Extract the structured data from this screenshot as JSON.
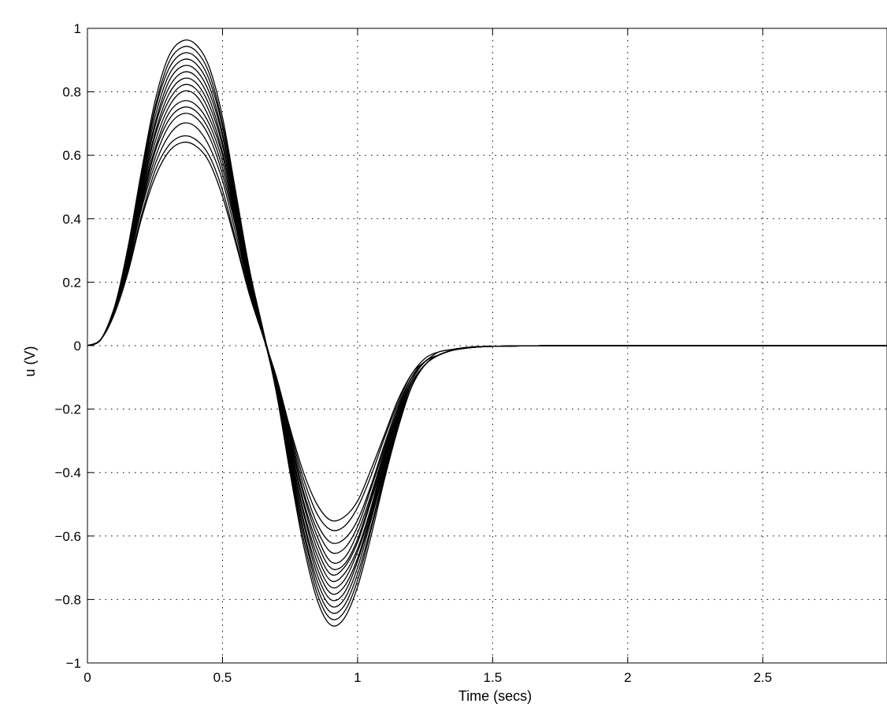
{
  "chart_data": {
    "type": "line",
    "title": "",
    "xlabel": "Time (secs)",
    "ylabel": "u (V)",
    "xlim": [
      0,
      2.96
    ],
    "ylim": [
      -1,
      1
    ],
    "grid": true,
    "legend": "none",
    "line_color": "#000000",
    "x_ticks": [
      {
        "value": 0,
        "label": "0"
      },
      {
        "value": 0.5,
        "label": "0.5"
      },
      {
        "value": 1,
        "label": "1"
      },
      {
        "value": 1.5,
        "label": "1.5"
      },
      {
        "value": 2,
        "label": "2"
      },
      {
        "value": 2.5,
        "label": "2.5"
      }
    ],
    "y_ticks": [
      {
        "value": 1,
        "label": "1"
      },
      {
        "value": 0.8,
        "label": "0.8"
      },
      {
        "value": 0.6,
        "label": "0.6"
      },
      {
        "value": 0.4,
        "label": "0.4"
      },
      {
        "value": 0.2,
        "label": "0.2"
      },
      {
        "value": 0,
        "label": "0"
      },
      {
        "value": -0.2,
        "label": "−0.2"
      },
      {
        "value": -0.4,
        "label": "−0.4"
      },
      {
        "value": -0.6,
        "label": "−0.6"
      },
      {
        "value": -0.8,
        "label": "−0.8"
      },
      {
        "value": -1,
        "label": "−1"
      }
    ],
    "x": [
      0,
      0.05,
      0.1,
      0.15,
      0.2,
      0.25,
      0.3,
      0.35,
      0.4,
      0.45,
      0.5,
      0.55,
      0.6,
      0.65,
      0.7,
      0.75,
      0.8,
      0.85,
      0.9,
      0.95,
      1.0,
      1.05,
      1.1,
      1.15,
      1.2,
      1.25,
      1.3,
      1.35,
      1.4,
      1.45,
      1.5,
      1.6,
      1.7,
      1.8,
      2.0,
      2.5,
      2.96
    ],
    "series": [
      {
        "values": [
          0,
          0.02,
          0.12,
          0.31,
          0.55,
          0.77,
          0.91,
          0.96,
          0.95,
          0.88,
          0.72,
          0.48,
          0.24,
          0.05,
          -0.15,
          -0.4,
          -0.63,
          -0.8,
          -0.88,
          -0.86,
          -0.76,
          -0.6,
          -0.42,
          -0.26,
          -0.13,
          -0.06,
          -0.03,
          -0.015,
          -0.008,
          -0.004,
          -0.002,
          -0.001,
          0,
          0,
          0,
          0,
          0
        ]
      },
      {
        "values": [
          0,
          0.02,
          0.12,
          0.3,
          0.54,
          0.75,
          0.89,
          0.94,
          0.93,
          0.86,
          0.7,
          0.47,
          0.23,
          0.05,
          -0.15,
          -0.39,
          -0.61,
          -0.78,
          -0.86,
          -0.84,
          -0.74,
          -0.58,
          -0.41,
          -0.25,
          -0.13,
          -0.06,
          -0.03,
          -0.015,
          -0.008,
          -0.004,
          -0.002,
          -0.001,
          0,
          0,
          0,
          0,
          0
        ]
      },
      {
        "values": [
          0,
          0.02,
          0.12,
          0.3,
          0.53,
          0.74,
          0.87,
          0.92,
          0.91,
          0.84,
          0.69,
          0.46,
          0.23,
          0.05,
          -0.14,
          -0.38,
          -0.59,
          -0.76,
          -0.84,
          -0.82,
          -0.72,
          -0.57,
          -0.4,
          -0.24,
          -0.12,
          -0.06,
          -0.03,
          -0.015,
          -0.008,
          -0.004,
          -0.002,
          -0.001,
          0,
          0,
          0,
          0,
          0
        ]
      },
      {
        "values": [
          0,
          0.02,
          0.12,
          0.29,
          0.52,
          0.72,
          0.85,
          0.9,
          0.89,
          0.82,
          0.67,
          0.45,
          0.22,
          0.04,
          -0.14,
          -0.37,
          -0.58,
          -0.74,
          -0.82,
          -0.8,
          -0.7,
          -0.55,
          -0.39,
          -0.24,
          -0.12,
          -0.06,
          -0.03,
          -0.015,
          -0.008,
          -0.004,
          -0.002,
          -0.001,
          0,
          0,
          0,
          0,
          0
        ]
      },
      {
        "values": [
          0,
          0.02,
          0.12,
          0.29,
          0.51,
          0.7,
          0.83,
          0.88,
          0.87,
          0.8,
          0.66,
          0.44,
          0.22,
          0.04,
          -0.14,
          -0.36,
          -0.56,
          -0.72,
          -0.8,
          -0.78,
          -0.68,
          -0.54,
          -0.38,
          -0.23,
          -0.12,
          -0.06,
          -0.03,
          -0.015,
          -0.008,
          -0.004,
          -0.002,
          -0.001,
          0,
          0,
          0,
          0,
          0
        ]
      },
      {
        "values": [
          0,
          0.02,
          0.12,
          0.28,
          0.5,
          0.69,
          0.81,
          0.86,
          0.85,
          0.78,
          0.64,
          0.43,
          0.21,
          0.04,
          -0.14,
          -0.35,
          -0.55,
          -0.7,
          -0.78,
          -0.76,
          -0.67,
          -0.53,
          -0.37,
          -0.23,
          -0.12,
          -0.06,
          -0.03,
          -0.015,
          -0.008,
          -0.004,
          -0.002,
          -0.001,
          0,
          0,
          0,
          0,
          0
        ]
      },
      {
        "values": [
          0,
          0.02,
          0.12,
          0.28,
          0.49,
          0.67,
          0.79,
          0.84,
          0.83,
          0.76,
          0.63,
          0.42,
          0.21,
          0.04,
          -0.13,
          -0.34,
          -0.53,
          -0.68,
          -0.76,
          -0.74,
          -0.65,
          -0.52,
          -0.36,
          -0.22,
          -0.11,
          -0.05,
          -0.03,
          -0.015,
          -0.008,
          -0.004,
          -0.002,
          -0.001,
          0,
          0,
          0,
          0,
          0
        ]
      },
      {
        "values": [
          0,
          0.02,
          0.12,
          0.27,
          0.48,
          0.66,
          0.77,
          0.82,
          0.81,
          0.74,
          0.61,
          0.41,
          0.2,
          0.04,
          -0.13,
          -0.33,
          -0.52,
          -0.66,
          -0.74,
          -0.72,
          -0.64,
          -0.51,
          -0.35,
          -0.22,
          -0.11,
          -0.05,
          -0.03,
          -0.015,
          -0.008,
          -0.004,
          -0.002,
          -0.001,
          0,
          0,
          0,
          0,
          0
        ]
      },
      {
        "values": [
          0,
          0.02,
          0.11,
          0.27,
          0.47,
          0.64,
          0.75,
          0.8,
          0.79,
          0.72,
          0.6,
          0.4,
          0.2,
          0.04,
          -0.13,
          -0.32,
          -0.5,
          -0.64,
          -0.72,
          -0.7,
          -0.62,
          -0.49,
          -0.35,
          -0.21,
          -0.11,
          -0.05,
          -0.03,
          -0.015,
          -0.008,
          -0.004,
          -0.002,
          -0.001,
          0,
          0,
          0,
          0,
          0
        ]
      },
      {
        "values": [
          0,
          0.02,
          0.11,
          0.26,
          0.46,
          0.62,
          0.73,
          0.77,
          0.76,
          0.7,
          0.58,
          0.39,
          0.19,
          0.04,
          -0.12,
          -0.31,
          -0.49,
          -0.62,
          -0.7,
          -0.69,
          -0.61,
          -0.48,
          -0.34,
          -0.21,
          -0.11,
          -0.05,
          -0.03,
          -0.015,
          -0.008,
          -0.004,
          -0.002,
          -0.001,
          0,
          0,
          0,
          0,
          0
        ]
      },
      {
        "values": [
          0,
          0.02,
          0.11,
          0.26,
          0.45,
          0.61,
          0.71,
          0.75,
          0.74,
          0.68,
          0.56,
          0.38,
          0.19,
          0.04,
          -0.12,
          -0.3,
          -0.47,
          -0.6,
          -0.68,
          -0.67,
          -0.59,
          -0.47,
          -0.33,
          -0.2,
          -0.1,
          -0.05,
          -0.03,
          -0.015,
          -0.008,
          -0.004,
          -0.002,
          -0.001,
          0,
          0,
          0,
          0,
          0
        ]
      },
      {
        "values": [
          0,
          0.02,
          0.11,
          0.25,
          0.44,
          0.59,
          0.69,
          0.73,
          0.72,
          0.66,
          0.54,
          0.37,
          0.18,
          0.04,
          -0.12,
          -0.29,
          -0.46,
          -0.58,
          -0.65,
          -0.64,
          -0.57,
          -0.45,
          -0.32,
          -0.2,
          -0.1,
          -0.05,
          -0.03,
          -0.015,
          -0.008,
          -0.004,
          -0.002,
          -0.001,
          0,
          0,
          0,
          0,
          0
        ]
      },
      {
        "values": [
          0,
          0.02,
          0.11,
          0.25,
          0.43,
          0.57,
          0.66,
          0.7,
          0.69,
          0.63,
          0.52,
          0.35,
          0.18,
          0.04,
          -0.11,
          -0.28,
          -0.44,
          -0.56,
          -0.62,
          -0.61,
          -0.55,
          -0.44,
          -0.31,
          -0.19,
          -0.1,
          -0.05,
          -0.03,
          -0.015,
          -0.008,
          -0.004,
          -0.002,
          -0.001,
          0,
          0,
          0,
          0,
          0
        ]
      },
      {
        "values": [
          0,
          0.02,
          0.11,
          0.24,
          0.41,
          0.55,
          0.63,
          0.66,
          0.65,
          0.6,
          0.49,
          0.33,
          0.17,
          0.03,
          -0.11,
          -0.27,
          -0.42,
          -0.53,
          -0.58,
          -0.57,
          -0.51,
          -0.41,
          -0.29,
          -0.18,
          -0.09,
          -0.05,
          -0.02,
          -0.012,
          -0.006,
          -0.003,
          -0.002,
          -0.001,
          0,
          0,
          0,
          0,
          0
        ]
      },
      {
        "values": [
          0,
          0.02,
          0.1,
          0.23,
          0.4,
          0.53,
          0.61,
          0.64,
          0.63,
          0.58,
          0.47,
          0.32,
          0.16,
          0.03,
          -0.1,
          -0.26,
          -0.4,
          -0.5,
          -0.55,
          -0.54,
          -0.49,
          -0.39,
          -0.28,
          -0.17,
          -0.09,
          -0.04,
          -0.02,
          -0.012,
          -0.006,
          -0.003,
          -0.002,
          -0.001,
          0,
          0,
          0,
          0,
          0
        ]
      }
    ]
  }
}
